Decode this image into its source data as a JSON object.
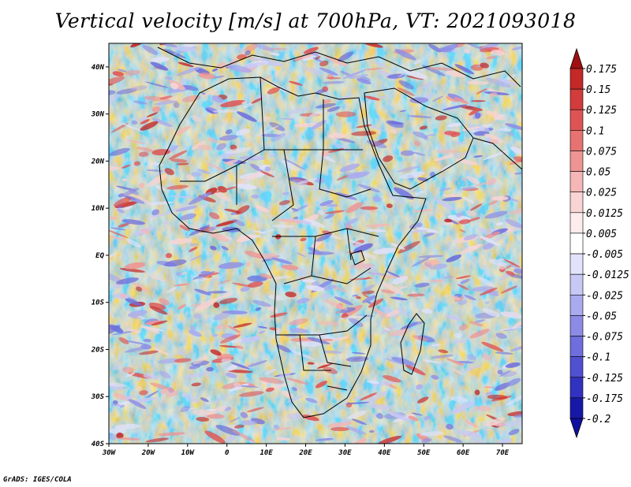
{
  "title": "Vertical velocity [m/s] at 700hPa, VT: 2021093018",
  "credit": "GrADS: IGES/COLA",
  "map": {
    "lon_range": [
      -30,
      75
    ],
    "lat_range": [
      -40,
      45
    ],
    "lon_ticks": [
      {
        "value": -30,
        "label": "30W"
      },
      {
        "value": -20,
        "label": "20W"
      },
      {
        "value": -10,
        "label": "10W"
      },
      {
        "value": 0,
        "label": "0"
      },
      {
        "value": 10,
        "label": "10E"
      },
      {
        "value": 20,
        "label": "20E"
      },
      {
        "value": 30,
        "label": "30E"
      },
      {
        "value": 40,
        "label": "40E"
      },
      {
        "value": 50,
        "label": "50E"
      },
      {
        "value": 60,
        "label": "60E"
      },
      {
        "value": 70,
        "label": "70E"
      }
    ],
    "lat_ticks": [
      {
        "value": 40,
        "label": "40N"
      },
      {
        "value": 30,
        "label": "30N"
      },
      {
        "value": 20,
        "label": "20N"
      },
      {
        "value": 10,
        "label": "10N"
      },
      {
        "value": 0,
        "label": "EQ"
      },
      {
        "value": -10,
        "label": "10S"
      },
      {
        "value": -20,
        "label": "20S"
      },
      {
        "value": -30,
        "label": "30S"
      },
      {
        "value": -40,
        "label": "40S"
      }
    ]
  },
  "colorbar": {
    "levels": [
      {
        "label": "0.175",
        "color": "#b01818"
      },
      {
        "label": "0.15",
        "color": "#c42828"
      },
      {
        "label": "0.125",
        "color": "#d23c3c"
      },
      {
        "label": "0.1",
        "color": "#de5454"
      },
      {
        "label": "0.075",
        "color": "#e67272"
      },
      {
        "label": "0.05",
        "color": "#ee9494"
      },
      {
        "label": "0.025",
        "color": "#f4b6b6"
      },
      {
        "label": "0.0125",
        "color": "#f9d4d4"
      },
      {
        "label": "0.005",
        "color": "#fcecec"
      },
      {
        "label": "-0.005",
        "color": "#ffffff"
      },
      {
        "label": "-0.0125",
        "color": "#e2e2fa"
      },
      {
        "label": "-0.025",
        "color": "#c8c8f4"
      },
      {
        "label": "-0.05",
        "color": "#aaaaee"
      },
      {
        "label": "-0.075",
        "color": "#8c8ce6"
      },
      {
        "label": "-0.1",
        "color": "#6e6edc"
      },
      {
        "label": "-0.125",
        "color": "#5050d0"
      },
      {
        "label": "-0.175",
        "color": "#3232c0"
      },
      {
        "label": "-0.2",
        "color": "#1818a8"
      }
    ],
    "top_arrow_color": "#a01010",
    "bottom_arrow_color": "#1010a0"
  }
}
